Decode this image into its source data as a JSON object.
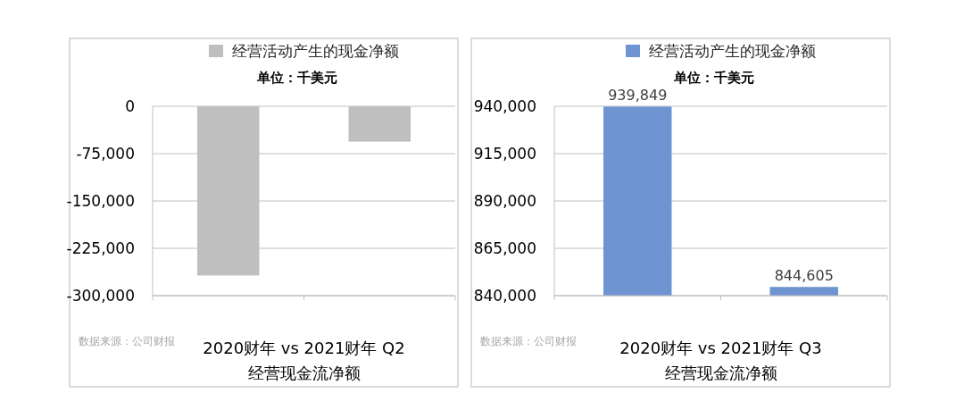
{
  "chart_data": [
    {
      "type": "bar",
      "title": "2020财年 vs 2021财年 Q2\n经营现金流净额",
      "subtitle": "单位：千美元",
      "categories": [
        null,
        null
      ],
      "series": [
        {
          "name": "经营活动产生的现金净额",
          "color": "#bfbfbf",
          "values": [
            -268000,
            -56000
          ]
        }
      ],
      "ylim": [
        -300000,
        0
      ],
      "yticks": [
        0,
        {
          "value": -75000,
          "label": "-75,000"
        },
        {
          "value": -150000,
          "label": "-150,000"
        },
        {
          "value": -225000,
          "label": "-225,000"
        },
        {
          "value": -300000,
          "label": "-300,000"
        }
      ],
      "grid": "y",
      "legend": "top",
      "annotations": [
        "数据来源：公司财报"
      ]
    },
    {
      "type": "bar",
      "title": "2020财年 vs 2021财年 Q3\n经营现金流净额",
      "subtitle": "单位：千美元",
      "categories": [
        null,
        null
      ],
      "series": [
        {
          "name": "经营活动产生的现金净额",
          "color": "#6f94d2",
          "values": [
            939849,
            844605
          ],
          "value_labels": [
            "939,849",
            "844,605"
          ]
        }
      ],
      "ylim": [
        840000,
        940000
      ],
      "yticks": [
        {
          "value": 840000,
          "label": "840,000"
        },
        {
          "value": 865000,
          "label": "865,000"
        },
        {
          "value": 890000,
          "label": "890,000"
        },
        {
          "value": 915000,
          "label": "915,000"
        },
        {
          "value": 940000,
          "label": "940,000"
        }
      ],
      "grid": "y",
      "legend": "top",
      "annotations": [
        "数据来源：公司财报"
      ]
    }
  ]
}
